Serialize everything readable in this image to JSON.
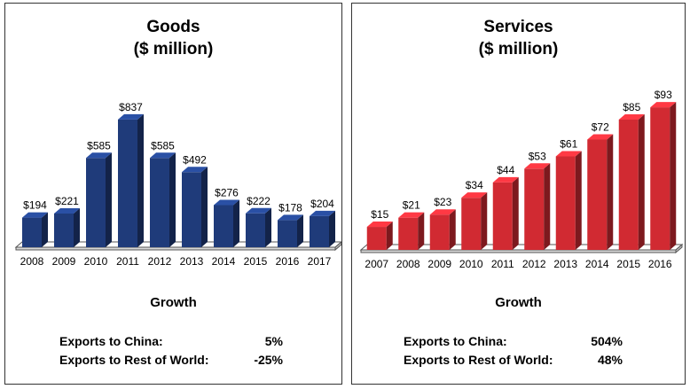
{
  "chart_data": [
    {
      "type": "bar",
      "title": "Goods",
      "subtitle": "($ million)",
      "categories": [
        "2008",
        "2009",
        "2010",
        "2011",
        "2012",
        "2013",
        "2014",
        "2015",
        "2016",
        "2017"
      ],
      "values": [
        194,
        221,
        585,
        837,
        585,
        492,
        276,
        222,
        178,
        204
      ],
      "data_labels": [
        "$194",
        "$221",
        "$585",
        "$837",
        "$585",
        "$492",
        "$276",
        "$222",
        "$178",
        "$204"
      ],
      "ylim": [
        0,
        900
      ],
      "color": "#1f3b7a",
      "grid": false,
      "growth": {
        "heading": "Growth",
        "rows": [
          {
            "label": "Exports to China:",
            "value": "5%"
          },
          {
            "label": "Exports to Rest of World:",
            "value": "-25%"
          }
        ]
      }
    },
    {
      "type": "bar",
      "title": "Services",
      "subtitle": "($ million)",
      "categories": [
        "2007",
        "2008",
        "2009",
        "2010",
        "2011",
        "2012",
        "2013",
        "2014",
        "2015",
        "2016"
      ],
      "values": [
        15,
        21,
        23,
        34,
        44,
        53,
        61,
        72,
        85,
        93
      ],
      "data_labels": [
        "$15",
        "$21",
        "$23",
        "$34",
        "$44",
        "$53",
        "$61",
        "$72",
        "$85",
        "$93"
      ],
      "ylim": [
        0,
        100
      ],
      "color": "#d12a32",
      "grid": false,
      "growth": {
        "heading": "Growth",
        "rows": [
          {
            "label": "Exports to China:",
            "value": "504%"
          },
          {
            "label": "Exports to Rest of World:",
            "value": "48%"
          }
        ]
      }
    }
  ]
}
